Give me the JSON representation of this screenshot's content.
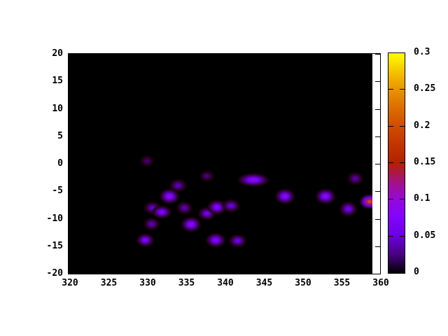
{
  "figure": {
    "title": "",
    "page_background": "#ffffff",
    "plot_background": "#000000"
  },
  "chart_data": {
    "type": "heatmap",
    "title": "",
    "xlabel": "",
    "ylabel": "",
    "grid": false,
    "x_axis": {
      "range": [
        320,
        360
      ],
      "ticks": [
        320,
        325,
        330,
        335,
        340,
        345,
        350,
        355,
        360
      ],
      "tick_labels": [
        "320",
        "325",
        "330",
        "335",
        "340",
        "345",
        "350",
        "355",
        "360"
      ]
    },
    "y_axis": {
      "range": [
        -20,
        20
      ],
      "ticks": [
        20,
        15,
        10,
        5,
        0,
        -5,
        -10,
        -15,
        -20
      ],
      "tick_labels": [
        "20",
        "15",
        "10",
        "5",
        "0",
        "-5",
        "-10",
        "-15",
        "-20"
      ]
    },
    "colorbar": {
      "range": [
        0,
        0.3
      ],
      "ticks": [
        0,
        0.05,
        0.1,
        0.15,
        0.2,
        0.25,
        0.3
      ],
      "tick_labels": [
        "0",
        "0.05",
        "0.1",
        "0.15",
        "0.2",
        "0.25",
        "0.3"
      ],
      "palette_name": "gnuplot-pm3d-black-purple-red-yellow",
      "palette_stops": [
        "#000000",
        "#4A0080",
        "#6801DD",
        "#8004FF",
        "#9309DD",
        "#A51280",
        "#B42000",
        "#C33300",
        "#D04C00",
        "#DD6C00",
        "#E99300",
        "#F4C400",
        "#FFFF00"
      ]
    },
    "points": [
      {
        "x": 329.9,
        "y": 0.5,
        "value": 0.025,
        "sx": 0.81,
        "sy": 0.89
      },
      {
        "x": 333.9,
        "y": -3.9,
        "value": 0.045,
        "sx": 0.99,
        "sy": 1.02
      },
      {
        "x": 332.8,
        "y": -5.9,
        "value": 0.105,
        "sx": 1.08,
        "sy": 1.15
      },
      {
        "x": 330.6,
        "y": -8.0,
        "value": 0.05,
        "sx": 0.99,
        "sy": 1.02
      },
      {
        "x": 331.8,
        "y": -8.8,
        "value": 0.085,
        "sx": 1.08,
        "sy": 1.02
      },
      {
        "x": 334.7,
        "y": -8.0,
        "value": 0.045,
        "sx": 0.9,
        "sy": 1.02
      },
      {
        "x": 330.5,
        "y": -11.0,
        "value": 0.045,
        "sx": 0.9,
        "sy": 1.02
      },
      {
        "x": 335.6,
        "y": -11.0,
        "value": 0.1,
        "sx": 1.08,
        "sy": 1.15
      },
      {
        "x": 329.7,
        "y": -13.9,
        "value": 0.085,
        "sx": 0.99,
        "sy": 1.02
      },
      {
        "x": 338.7,
        "y": -13.9,
        "value": 0.09,
        "sx": 1.08,
        "sy": 1.15
      },
      {
        "x": 341.6,
        "y": -14.0,
        "value": 0.065,
        "sx": 0.99,
        "sy": 1.02
      },
      {
        "x": 337.6,
        "y": -9.0,
        "value": 0.07,
        "sx": 0.99,
        "sy": 1.02
      },
      {
        "x": 338.9,
        "y": -7.9,
        "value": 0.09,
        "sx": 1.08,
        "sy": 1.15
      },
      {
        "x": 340.7,
        "y": -7.6,
        "value": 0.06,
        "sx": 0.99,
        "sy": 1.02
      },
      {
        "x": 337.6,
        "y": -2.2,
        "value": 0.03,
        "sx": 0.81,
        "sy": 0.89
      },
      {
        "x": 343.6,
        "y": -2.9,
        "value": 0.105,
        "sx": 1.71,
        "sy": 1.02
      },
      {
        "x": 347.7,
        "y": -5.9,
        "value": 0.1,
        "sx": 1.08,
        "sy": 1.15
      },
      {
        "x": 352.9,
        "y": -5.9,
        "value": 0.105,
        "sx": 1.08,
        "sy": 1.15
      },
      {
        "x": 356.7,
        "y": -2.7,
        "value": 0.04,
        "sx": 0.9,
        "sy": 1.02
      },
      {
        "x": 355.8,
        "y": -8.2,
        "value": 0.07,
        "sx": 0.99,
        "sy": 1.15
      },
      {
        "x": 358.6,
        "y": -6.9,
        "value": 0.22,
        "sx": 1.08,
        "sy": 1.15
      }
    ]
  }
}
